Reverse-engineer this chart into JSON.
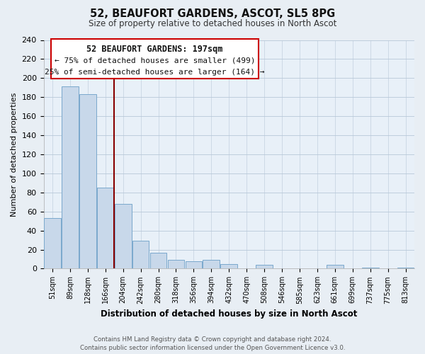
{
  "title": "52, BEAUFORT GARDENS, ASCOT, SL5 8PG",
  "subtitle": "Size of property relative to detached houses in North Ascot",
  "xlabel": "Distribution of detached houses by size in North Ascot",
  "ylabel": "Number of detached properties",
  "bar_labels": [
    "51sqm",
    "89sqm",
    "128sqm",
    "166sqm",
    "204sqm",
    "242sqm",
    "280sqm",
    "318sqm",
    "356sqm",
    "394sqm",
    "432sqm",
    "470sqm",
    "508sqm",
    "546sqm",
    "585sqm",
    "623sqm",
    "661sqm",
    "699sqm",
    "737sqm",
    "775sqm",
    "813sqm"
  ],
  "bar_values": [
    53,
    191,
    183,
    85,
    68,
    29,
    17,
    9,
    8,
    9,
    5,
    0,
    4,
    0,
    0,
    0,
    4,
    0,
    1,
    0,
    1
  ],
  "bar_color": "#c8d8ea",
  "bar_edge_color": "#7aa8cc",
  "highlight_line_color": "#880000",
  "annotation_title": "52 BEAUFORT GARDENS: 197sqm",
  "annotation_line1": "← 75% of detached houses are smaller (499)",
  "annotation_line2": "25% of semi-detached houses are larger (164) →",
  "annotation_box_color": "#ffffff",
  "annotation_box_edge": "#cc0000",
  "ylim": [
    0,
    240
  ],
  "yticks": [
    0,
    20,
    40,
    60,
    80,
    100,
    120,
    140,
    160,
    180,
    200,
    220,
    240
  ],
  "footnote1": "Contains HM Land Registry data © Crown copyright and database right 2024.",
  "footnote2": "Contains public sector information licensed under the Open Government Licence v3.0.",
  "bg_color": "#e8eef4",
  "plot_bg_color": "#e8f0f8"
}
